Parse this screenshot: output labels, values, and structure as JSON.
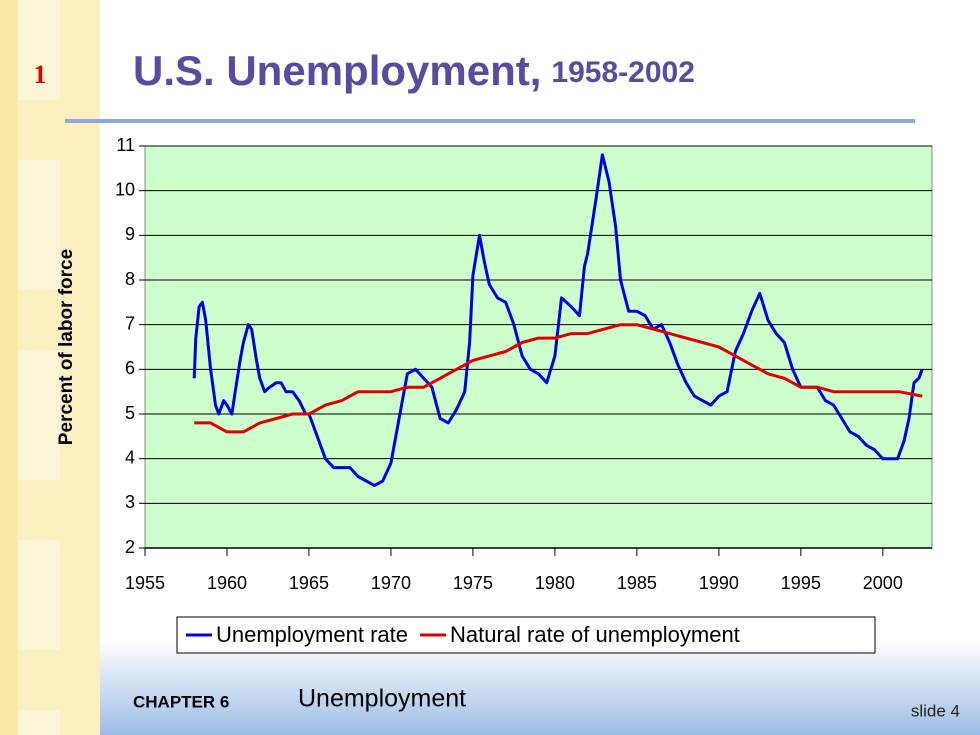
{
  "header": {
    "slide_number": "1",
    "title": "U.S. Unemployment,",
    "title_years": "1958-2002"
  },
  "footer": {
    "chapter": "CHAPTER 6",
    "chapter_title": "Unemployment",
    "slide": "slide 4"
  },
  "chart_data": {
    "type": "line",
    "ylabel": "Percent of labor force",
    "xlim": [
      1955,
      2003
    ],
    "xticks": [
      1955,
      1960,
      1965,
      1970,
      1975,
      1980,
      1985,
      1990,
      1995,
      2000
    ],
    "ylim": [
      2,
      11
    ],
    "yticks": [
      2,
      3,
      4,
      5,
      6,
      7,
      8,
      9,
      10,
      11
    ],
    "grid": true,
    "background": "#ccffcc",
    "legend": "bottom",
    "series": [
      {
        "name": "Unemployment rate",
        "color": "#0000dd",
        "x": [
          1958.0,
          1958.1,
          1958.3,
          1958.5,
          1958.7,
          1959.0,
          1959.3,
          1959.5,
          1959.8,
          1960.0,
          1960.3,
          1960.5,
          1960.8,
          1961.0,
          1961.3,
          1961.5,
          1961.8,
          1962.0,
          1962.3,
          1962.6,
          1963.0,
          1963.3,
          1963.6,
          1964.0,
          1964.4,
          1964.8,
          1965.0,
          1965.5,
          1966.0,
          1966.5,
          1967.0,
          1967.5,
          1968.0,
          1968.5,
          1969.0,
          1969.5,
          1970.0,
          1970.5,
          1971.0,
          1971.5,
          1972.0,
          1972.5,
          1973.0,
          1973.5,
          1974.0,
          1974.5,
          1974.8,
          1975.0,
          1975.4,
          1975.7,
          1976.0,
          1976.5,
          1977.0,
          1977.5,
          1978.0,
          1978.5,
          1979.0,
          1979.5,
          1980.0,
          1980.4,
          1980.7,
          1981.0,
          1981.5,
          1981.8,
          1982.0,
          1982.5,
          1982.9,
          1983.3,
          1983.7,
          1984.0,
          1984.5,
          1985.0,
          1985.5,
          1986.0,
          1986.5,
          1987.0,
          1987.5,
          1988.0,
          1988.5,
          1989.0,
          1989.5,
          1990.0,
          1990.5,
          1991.0,
          1991.5,
          1992.0,
          1992.5,
          1993.0,
          1993.5,
          1994.0,
          1994.5,
          1995.0,
          1995.5,
          1996.0,
          1996.5,
          1997.0,
          1997.5,
          1998.0,
          1998.5,
          1999.0,
          1999.5,
          2000.0,
          2000.5,
          2000.9,
          2001.3,
          2001.6,
          2001.9,
          2002.2,
          2002.4
        ],
        "values": [
          5.8,
          6.7,
          7.4,
          7.5,
          7.1,
          6.0,
          5.2,
          5.0,
          5.3,
          5.2,
          5.0,
          5.5,
          6.2,
          6.6,
          7.0,
          6.9,
          6.2,
          5.8,
          5.5,
          5.6,
          5.7,
          5.7,
          5.5,
          5.5,
          5.3,
          5.0,
          5.0,
          4.5,
          4.0,
          3.8,
          3.8,
          3.8,
          3.6,
          3.5,
          3.4,
          3.5,
          3.9,
          4.9,
          5.9,
          6.0,
          5.8,
          5.6,
          4.9,
          4.8,
          5.1,
          5.5,
          6.6,
          8.1,
          9.0,
          8.4,
          7.9,
          7.6,
          7.5,
          7.0,
          6.3,
          6.0,
          5.9,
          5.7,
          6.3,
          7.6,
          7.5,
          7.4,
          7.2,
          8.3,
          8.6,
          9.8,
          10.8,
          10.2,
          9.2,
          8.0,
          7.3,
          7.3,
          7.2,
          6.9,
          7.0,
          6.6,
          6.1,
          5.7,
          5.4,
          5.3,
          5.2,
          5.4,
          5.5,
          6.4,
          6.8,
          7.3,
          7.7,
          7.1,
          6.8,
          6.6,
          6.0,
          5.6,
          5.6,
          5.6,
          5.3,
          5.2,
          4.9,
          4.6,
          4.5,
          4.3,
          4.2,
          4.0,
          4.0,
          4.0,
          4.4,
          4.9,
          5.7,
          5.8,
          6.0
        ]
      },
      {
        "name": "Natural rate of unemployment",
        "color": "#e00000",
        "x": [
          1958,
          1959,
          1960,
          1961,
          1962,
          1963,
          1964,
          1965,
          1966,
          1967,
          1968,
          1969,
          1970,
          1971,
          1972,
          1973,
          1974,
          1975,
          1976,
          1977,
          1978,
          1979,
          1980,
          1981,
          1982,
          1983,
          1984,
          1985,
          1986,
          1987,
          1988,
          1989,
          1990,
          1991,
          1992,
          1993,
          1994,
          1995,
          1996,
          1997,
          1998,
          1999,
          2000,
          2001,
          2002.4
        ],
        "values": [
          4.8,
          4.8,
          4.6,
          4.6,
          4.8,
          4.9,
          5.0,
          5.0,
          5.2,
          5.3,
          5.5,
          5.5,
          5.5,
          5.6,
          5.6,
          5.8,
          6.0,
          6.2,
          6.3,
          6.4,
          6.6,
          6.7,
          6.7,
          6.8,
          6.8,
          6.9,
          7.0,
          7.0,
          6.9,
          6.8,
          6.7,
          6.6,
          6.5,
          6.3,
          6.1,
          5.9,
          5.8,
          5.6,
          5.6,
          5.5,
          5.5,
          5.5,
          5.5,
          5.5,
          5.4
        ]
      }
    ]
  }
}
